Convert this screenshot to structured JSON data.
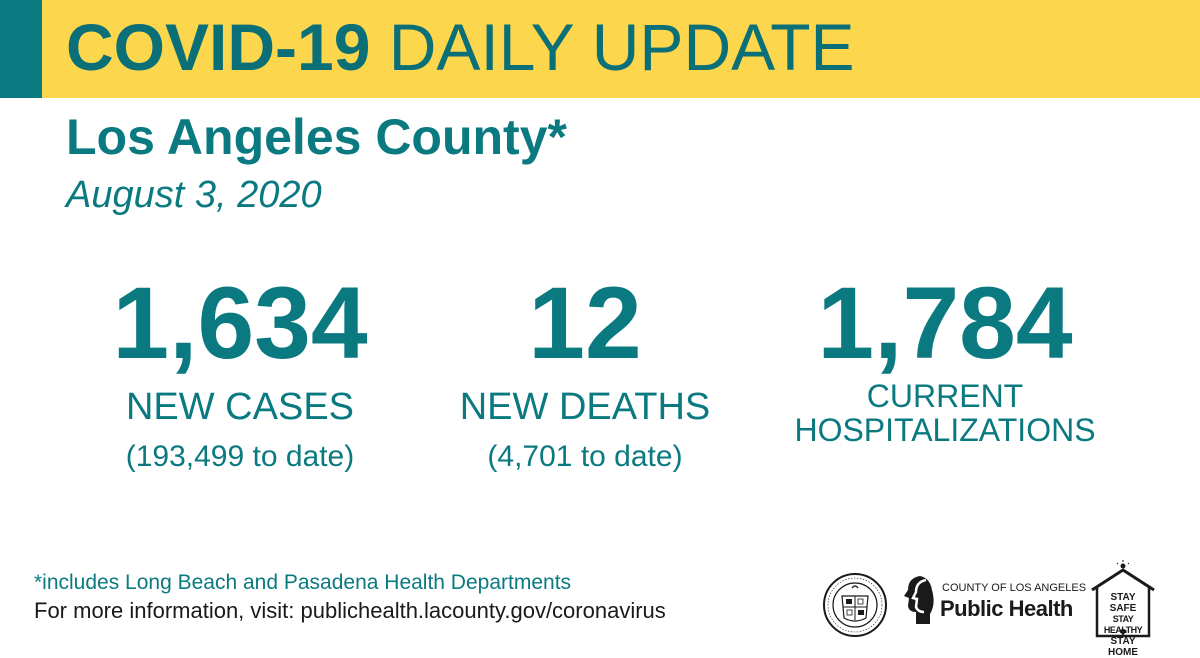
{
  "header": {
    "title_bold": "COVID-19",
    "title_rest": "DAILY UPDATE"
  },
  "region": {
    "name": "Los Angeles County*",
    "date": "August 3, 2020"
  },
  "stats": {
    "cases": {
      "value": "1,634",
      "label": "NEW CASES",
      "to_date": "(193,499 to date)"
    },
    "deaths": {
      "value": "12",
      "label": "NEW DEATHS",
      "to_date": "(4,701 to date)"
    },
    "hospitalizations": {
      "value": "1,784",
      "label_line1": "CURRENT",
      "label_line2": "HOSPITALIZATIONS"
    }
  },
  "footer": {
    "footnote": "*includes Long Beach and Pasadena Health Departments",
    "more_info": "For more information, visit: publichealth.lacounty.gov/coronavirus"
  },
  "logos": {
    "seal_text": "COUNTY OF LOS ANGELES · CALIFORNIA",
    "ph_top": "COUNTY OF LOS ANGELES",
    "ph_main": "Public Health",
    "stay_1": "STAY SAFE",
    "stay_2": "STAY HEALTHY",
    "stay_3": "STAY HOME"
  },
  "colors": {
    "teal": "#0a7a80",
    "banner_yellow": "#fcd64c",
    "text_dark": "#1a1a1a"
  }
}
